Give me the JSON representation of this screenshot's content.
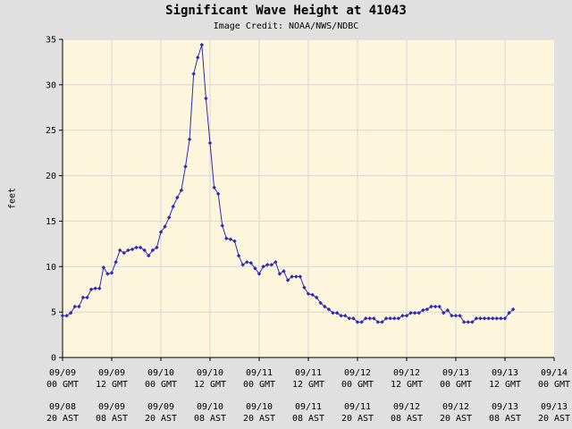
{
  "chart_data": {
    "type": "line",
    "title": "Significant Wave Height at 41043",
    "subtitle": "Image Credit: NOAA/NWS/NDBC",
    "ylabel": "feet",
    "ylim": [
      0,
      35
    ],
    "yticks": [
      0,
      5,
      10,
      15,
      20,
      25,
      30,
      35
    ],
    "xlim": [
      0,
      120
    ],
    "grid": true,
    "colors": {
      "background": "#e0e0e0",
      "plot_area": "#fdf5dc",
      "grid": "#d6d6d6",
      "series": "#2a2ab8"
    },
    "xticks": [
      {
        "x": 0,
        "gmt": [
          "09/09",
          "00 GMT"
        ],
        "ast": [
          "09/08",
          "20 AST"
        ]
      },
      {
        "x": 12,
        "gmt": [
          "09/09",
          "12 GMT"
        ],
        "ast": [
          "09/09",
          "08 AST"
        ]
      },
      {
        "x": 24,
        "gmt": [
          "09/10",
          "00 GMT"
        ],
        "ast": [
          "09/09",
          "20 AST"
        ]
      },
      {
        "x": 36,
        "gmt": [
          "09/10",
          "12 GMT"
        ],
        "ast": [
          "09/10",
          "08 AST"
        ]
      },
      {
        "x": 48,
        "gmt": [
          "09/11",
          "00 GMT"
        ],
        "ast": [
          "09/10",
          "20 AST"
        ]
      },
      {
        "x": 60,
        "gmt": [
          "09/11",
          "12 GMT"
        ],
        "ast": [
          "09/11",
          "08 AST"
        ]
      },
      {
        "x": 72,
        "gmt": [
          "09/12",
          "00 GMT"
        ],
        "ast": [
          "09/11",
          "20 AST"
        ]
      },
      {
        "x": 84,
        "gmt": [
          "09/12",
          "12 GMT"
        ],
        "ast": [
          "09/12",
          "08 AST"
        ]
      },
      {
        "x": 96,
        "gmt": [
          "09/13",
          "00 GMT"
        ],
        "ast": [
          "09/12",
          "20 AST"
        ]
      },
      {
        "x": 108,
        "gmt": [
          "09/13",
          "12 GMT"
        ],
        "ast": [
          "09/13",
          "08 AST"
        ]
      },
      {
        "x": 120,
        "gmt": [
          "09/14",
          "00 GMT"
        ],
        "ast": [
          "09/13",
          "20 AST"
        ]
      }
    ],
    "x": [
      0,
      1,
      2,
      3,
      4,
      5,
      6,
      7,
      8,
      9,
      10,
      11,
      12,
      13,
      14,
      15,
      16,
      17,
      18,
      19,
      20,
      21,
      22,
      23,
      24,
      25,
      26,
      27,
      28,
      29,
      30,
      31,
      32,
      33,
      34,
      35,
      36,
      37,
      38,
      39,
      40,
      41,
      42,
      43,
      44,
      45,
      46,
      47,
      48,
      49,
      50,
      51,
      52,
      53,
      54,
      55,
      56,
      57,
      58,
      59,
      60,
      61,
      62,
      63,
      64,
      65,
      66,
      67,
      68,
      69,
      70,
      71,
      72,
      73,
      74,
      75,
      76,
      77,
      78,
      79,
      80,
      81,
      82,
      83,
      84,
      85,
      86,
      87,
      88,
      89,
      90,
      91,
      92,
      93,
      94,
      95,
      96,
      97,
      98,
      99,
      100,
      101,
      102,
      103,
      104,
      105,
      106,
      107,
      108,
      109,
      110
    ],
    "values": [
      4.6,
      4.6,
      4.9,
      5.6,
      5.6,
      6.6,
      6.6,
      7.5,
      7.6,
      7.6,
      9.9,
      9.2,
      9.3,
      10.5,
      11.8,
      11.5,
      11.8,
      11.9,
      12.1,
      12.1,
      11.8,
      11.2,
      11.8,
      12.1,
      13.8,
      14.4,
      15.4,
      16.6,
      17.6,
      18.4,
      21.0,
      24.0,
      31.2,
      33.0,
      34.4,
      28.5,
      23.6,
      18.7,
      18.0,
      14.5,
      13.1,
      13.0,
      12.8,
      11.2,
      10.2,
      10.5,
      10.4,
      9.8,
      9.2,
      10.0,
      10.2,
      10.2,
      10.5,
      9.2,
      9.5,
      8.5,
      8.9,
      8.9,
      8.9,
      7.7,
      7.0,
      6.9,
      6.6,
      6.0,
      5.6,
      5.3,
      4.9,
      4.9,
      4.6,
      4.6,
      4.3,
      4.3,
      3.9,
      3.9,
      4.3,
      4.3,
      4.3,
      3.9,
      3.9,
      4.3,
      4.3,
      4.3,
      4.3,
      4.6,
      4.6,
      4.9,
      4.9,
      4.9,
      5.2,
      5.3,
      5.6,
      5.6,
      5.6,
      4.9,
      5.2,
      4.6,
      4.6,
      4.6,
      3.9,
      3.9,
      3.9,
      4.3,
      4.3,
      4.3,
      4.3,
      4.3,
      4.3,
      4.3,
      4.3,
      4.9,
      5.3
    ]
  }
}
